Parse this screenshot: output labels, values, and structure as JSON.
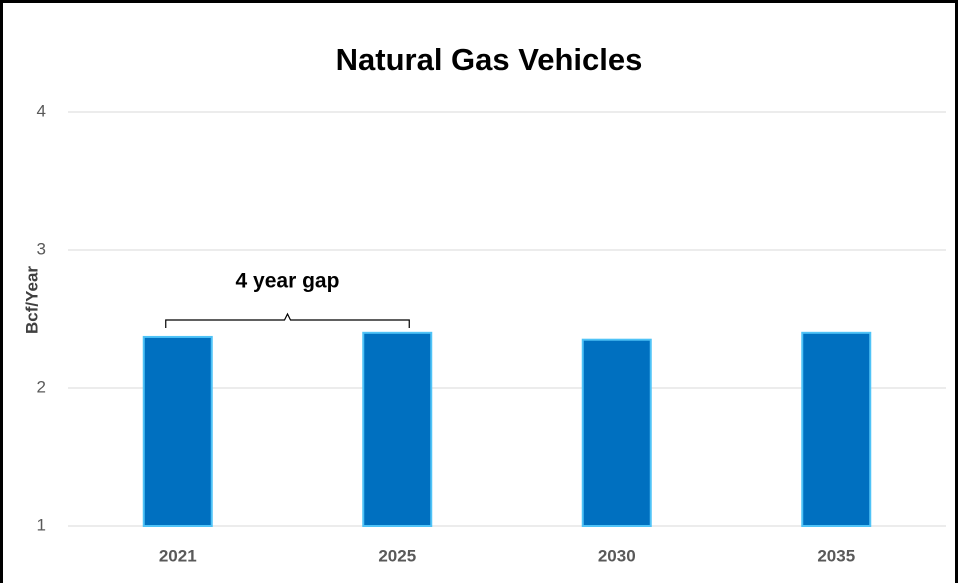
{
  "chart_data": {
    "type": "bar",
    "title": "Natural Gas Vehicles",
    "y_label": "Bcf/Year",
    "annotation": "4 year gap",
    "categories": [
      "2021",
      "2025",
      "2030",
      "2035"
    ],
    "values": [
      2.37,
      2.4,
      2.35,
      2.4
    ],
    "color": "#0070c0",
    "ylim": [
      1,
      4
    ],
    "yticks": [
      1,
      2,
      3,
      4
    ],
    "grid": true
  }
}
